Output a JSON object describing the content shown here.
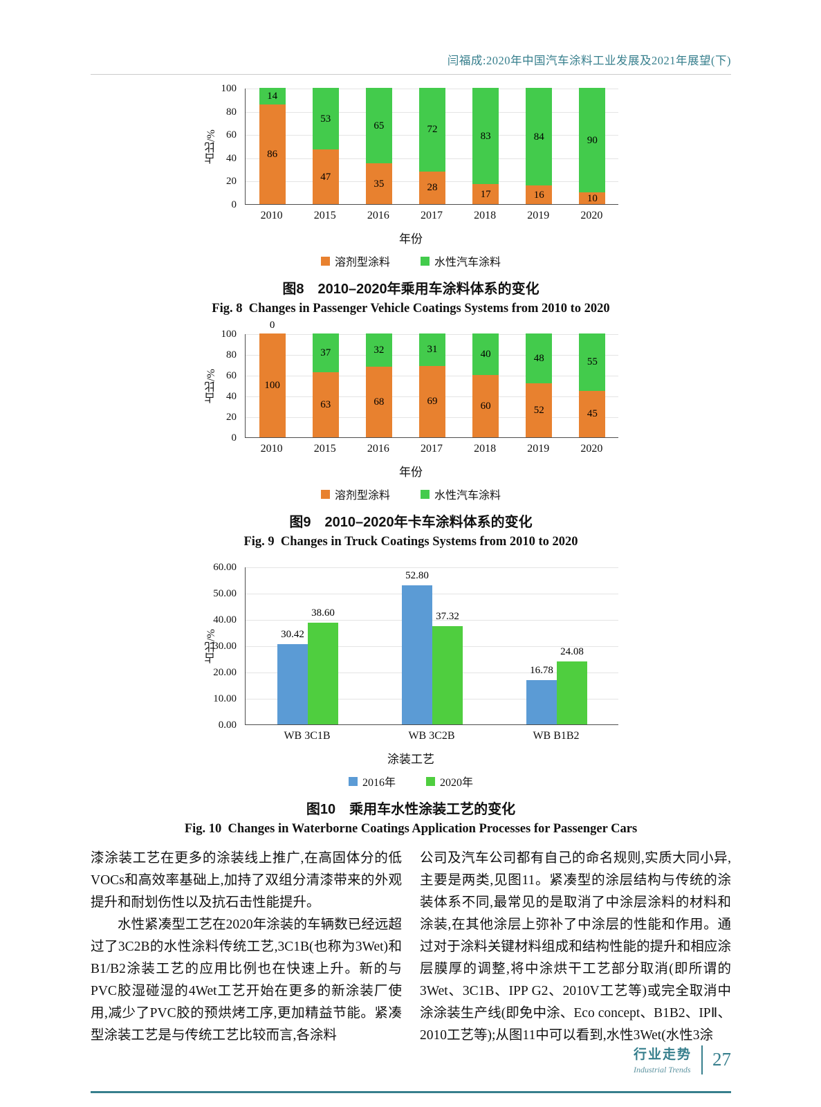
{
  "header": {
    "running_title": "闫福成:2020年中国汽车涂料工业发展及2021年展望(下)"
  },
  "figures": [
    {
      "caption_cn": "图8　2010–2020年乘用车涂料体系的变化",
      "caption_en": "Fig. 8  Changes in Passenger Vehicle Coatings Systems from 2010 to 2020"
    },
    {
      "caption_cn": "图9　2010–2020年卡车涂料体系的变化",
      "caption_en": "Fig. 9  Changes in Truck Coatings Systems from 2010 to 2020"
    },
    {
      "caption_cn": "图10　乘用车水性涂装工艺的变化",
      "caption_en": "Fig. 10  Changes in Waterborne Coatings Application Processes for Passenger Cars"
    }
  ],
  "chart_data": [
    {
      "type": "bar",
      "stacked": true,
      "title": "2010–2020年乘用车涂料体系的变化",
      "categories": [
        "2010",
        "2015",
        "2016",
        "2017",
        "2018",
        "2019",
        "2020"
      ],
      "series": [
        {
          "name": "溶剂型涂料",
          "color": "#E8812F",
          "values": [
            86,
            47,
            35,
            28,
            17,
            16,
            10
          ]
        },
        {
          "name": "水性汽车涂料",
          "color": "#43CB4C",
          "values": [
            14,
            53,
            65,
            72,
            83,
            84,
            90
          ]
        }
      ],
      "xlabel": "年份",
      "ylabel": "占比/%",
      "ylim": [
        0,
        100
      ],
      "ytick_step": 20,
      "grid": true,
      "legend_position": "bottom",
      "data_labels": "inside"
    },
    {
      "type": "bar",
      "stacked": true,
      "title": "2010–2020年卡车涂料体系的变化",
      "categories": [
        "2010",
        "2015",
        "2016",
        "2017",
        "2018",
        "2019",
        "2020"
      ],
      "series": [
        {
          "name": "溶剂型涂料",
          "color": "#E8812F",
          "values": [
            100,
            63,
            68,
            69,
            60,
            52,
            45
          ]
        },
        {
          "name": "水性汽车涂料",
          "color": "#43CB4C",
          "values": [
            0,
            37,
            32,
            31,
            40,
            48,
            55
          ]
        }
      ],
      "xlabel": "年份",
      "ylabel": "占比/%",
      "ylim": [
        0,
        100
      ],
      "ytick_step": 20,
      "grid": true,
      "legend_position": "bottom",
      "data_labels": "inside"
    },
    {
      "type": "bar",
      "stacked": false,
      "title": "乘用车水性涂装工艺的变化",
      "categories": [
        "WB 3C1B",
        "WB 3C2B",
        "WB B1B2"
      ],
      "series": [
        {
          "name": "2016年",
          "color": "#5B9BD5",
          "values": [
            30.42,
            52.8,
            16.78
          ]
        },
        {
          "name": "2020年",
          "color": "#4FCE3F",
          "values": [
            38.6,
            37.32,
            24.08
          ]
        }
      ],
      "xlabel": "涂装工艺",
      "ylabel": "占比/%",
      "ylim": [
        0,
        60
      ],
      "ytick_step": 10,
      "ytick_format": "2dp",
      "grid": true,
      "legend_position": "bottom",
      "data_labels": "above"
    }
  ],
  "body": {
    "left_column": [
      "漆涂装工艺在更多的涂装线上推广,在高固体分的低VOCs和高效率基础上,加持了双组分清漆带来的外观提升和耐划伤性以及抗石击性能提升。",
      "水性紧凑型工艺在2020年涂装的车辆数已经远超过了3C2B的水性涂料传统工艺,3C1B(也称为3Wet)和B1/B2涂装工艺的应用比例也在快速上升。新的与PVC胶湿碰湿的4Wet工艺开始在更多的新涂装厂使用,减少了PVC胶的预烘烤工序,更加精益节能。紧凑型涂装工艺是与传统工艺比较而言,各涂料"
    ],
    "right_column": [
      "公司及汽车公司都有自己的命名规则,实质大同小异,主要是两类,见图11。紧凑型的涂层结构与传统的涂装体系不同,最常见的是取消了中涂层涂料的材料和涂装,在其他涂层上弥补了中涂层的性能和作用。通过对于涂料关键材料组成和结构性能的提升和相应涂层膜厚的调整,将中涂烘干工艺部分取消(即所谓的3Wet、3C1B、IPP G2、2010V工艺等)或完全取消中涂涂装生产线(即免中涂、Eco concept、B1B2、IPⅡ、2010工艺等);从图11中可以看到,水性3Wet(水性3涂"
    ]
  },
  "footer": {
    "section_cn": "行业走势",
    "section_en": "Industrial Trends",
    "page_number": "27"
  },
  "colors": {
    "accent_teal": "#377F8D",
    "solvent_orange": "#E8812F",
    "waterborne_green": "#43CB4C",
    "bar_blue_2016": "#5B9BD5",
    "bar_green_2020": "#4FCE3F"
  }
}
